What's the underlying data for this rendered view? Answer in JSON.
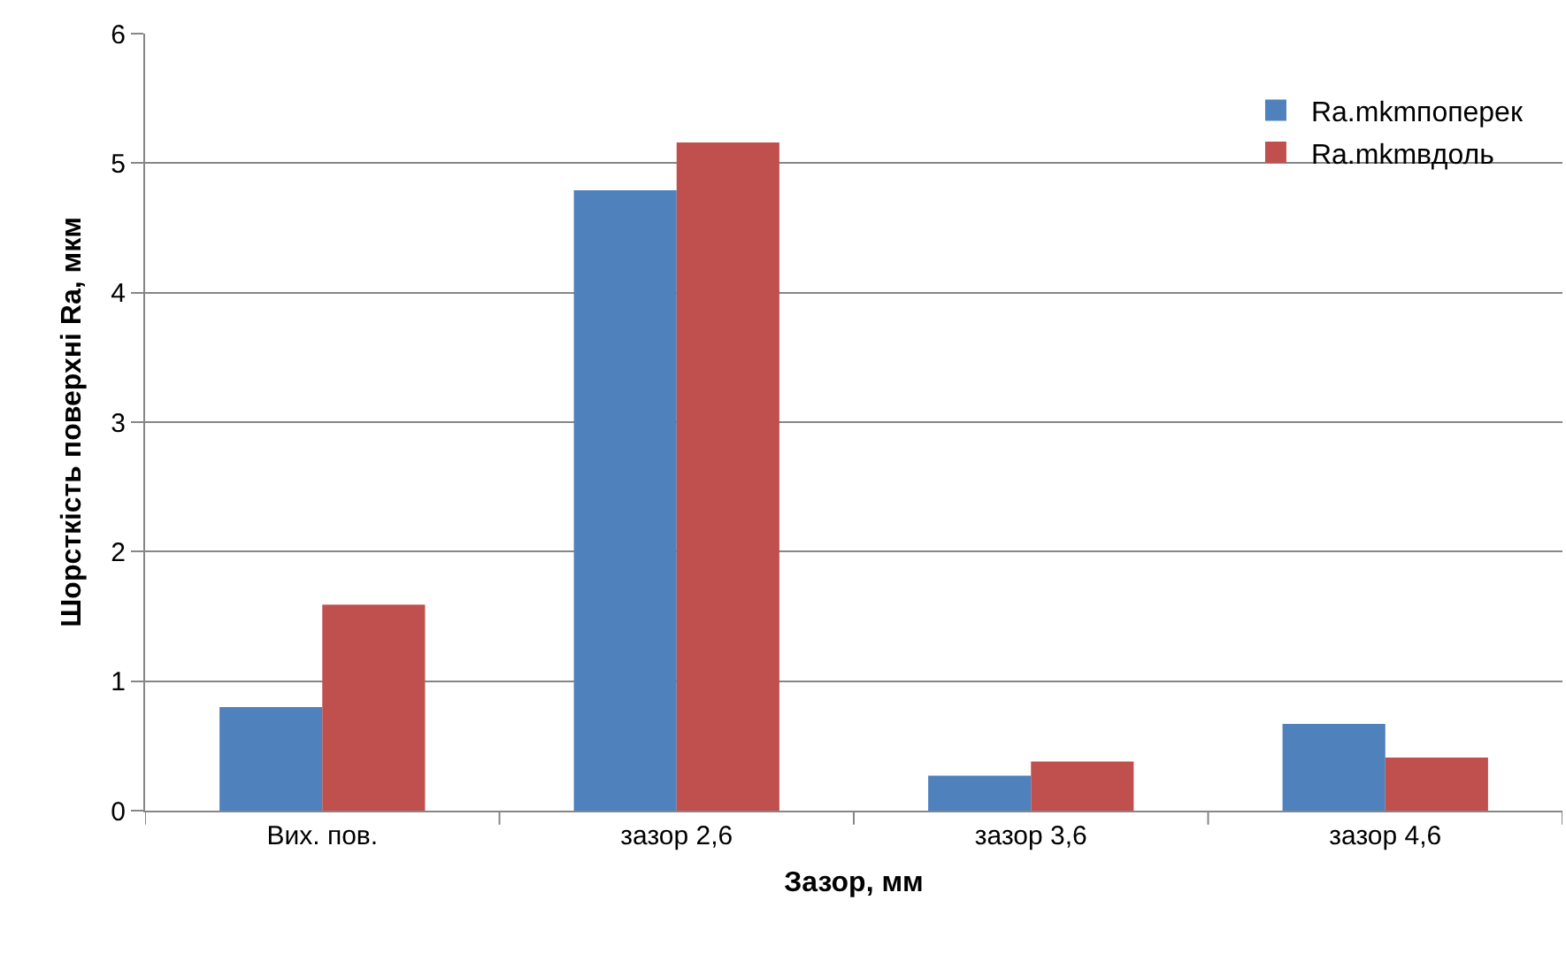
{
  "chart_data": {
    "type": "bar",
    "xlabel": "Зазор, мм",
    "ylabel": "Шорсткість поверхні Ra, мкм",
    "categories": [
      "Вих. пов.",
      "зазор 2,6",
      "зазор 3,6",
      "зазор 4,6"
    ],
    "series": [
      {
        "name": "Ra.mkmпоперек",
        "color": "#4f81bd",
        "values": [
          0.8,
          4.79,
          0.27,
          0.67
        ]
      },
      {
        "name": "Ra.mkmвдоль",
        "color": "#c0504d",
        "values": [
          1.59,
          5.16,
          0.38,
          0.41
        ]
      }
    ],
    "ylim": [
      0,
      6
    ],
    "yticks": [
      0,
      1,
      2,
      3,
      4,
      5,
      6
    ],
    "grid": "y",
    "legend": "top right"
  }
}
